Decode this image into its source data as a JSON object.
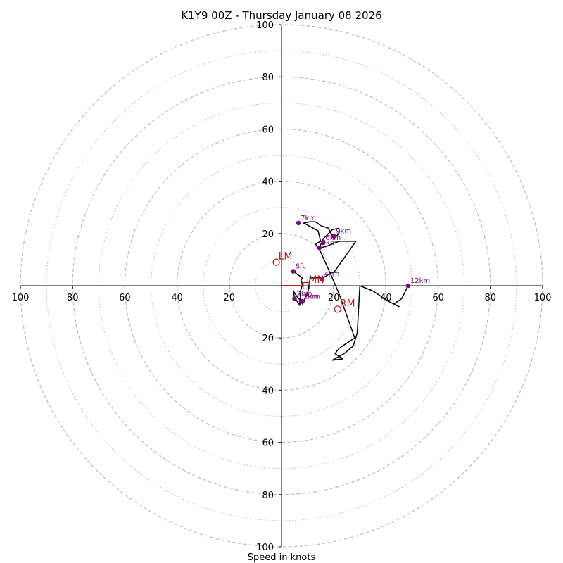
{
  "chart_data": {
    "type": "hodograph",
    "title": "K1Y9 00Z - Thursday January 08 2026",
    "xlabel": "Speed in knots",
    "units": "knots",
    "max_speed": 100,
    "major_rings": [
      20,
      40,
      60,
      80,
      100
    ],
    "minor_rings": [
      10,
      30,
      50,
      70,
      90
    ],
    "x_ticks": [
      {
        "value": -100,
        "label": "100"
      },
      {
        "value": -80,
        "label": "80"
      },
      {
        "value": -60,
        "label": "60"
      },
      {
        "value": -40,
        "label": "40"
      },
      {
        "value": -20,
        "label": "20"
      },
      {
        "value": 20,
        "label": "20"
      },
      {
        "value": 40,
        "label": "40"
      },
      {
        "value": 60,
        "label": "60"
      },
      {
        "value": 80,
        "label": "80"
      },
      {
        "value": 100,
        "label": "100"
      }
    ],
    "y_ticks": [
      {
        "value": 100,
        "label": "100"
      },
      {
        "value": 80,
        "label": "80"
      },
      {
        "value": 60,
        "label": "60"
      },
      {
        "value": 40,
        "label": "40"
      },
      {
        "value": 20,
        "label": "20"
      },
      {
        "value": -20,
        "label": "20"
      },
      {
        "value": -40,
        "label": "40"
      },
      {
        "value": -60,
        "label": "60"
      },
      {
        "value": -80,
        "label": "80"
      },
      {
        "value": -100,
        "label": "100"
      }
    ],
    "trace": [
      [
        4.5,
        5.5
      ],
      [
        8,
        3
      ],
      [
        7.5,
        2
      ],
      [
        8,
        0.5
      ],
      [
        7,
        -3
      ],
      [
        7.5,
        -5.5
      ],
      [
        6.5,
        -5
      ],
      [
        4.5,
        -2
      ],
      [
        5,
        -4.5
      ],
      [
        7,
        -7.5
      ],
      [
        7,
        -5
      ],
      [
        8,
        -7
      ],
      [
        10,
        -3
      ],
      [
        11,
        3
      ],
      [
        16,
        3
      ],
      [
        19,
        5
      ],
      [
        20,
        5
      ],
      [
        28.5,
        17
      ],
      [
        22,
        17
      ],
      [
        17,
        15
      ],
      [
        14.5,
        14.5
      ],
      [
        16,
        18
      ],
      [
        19.5,
        21.5
      ],
      [
        22,
        22
      ],
      [
        22,
        20
      ],
      [
        20,
        18
      ],
      [
        18,
        22
      ],
      [
        15,
        23
      ],
      [
        13,
        24.5
      ],
      [
        11,
        24.5
      ],
      [
        8.5,
        24
      ],
      [
        14,
        21
      ],
      [
        15,
        17
      ],
      [
        13,
        16
      ],
      [
        14.5,
        14
      ],
      [
        19,
        4
      ],
      [
        22,
        -3
      ],
      [
        27,
        -17
      ],
      [
        28,
        -20
      ],
      [
        22,
        -24
      ],
      [
        20.5,
        -26
      ],
      [
        23.5,
        -28
      ],
      [
        19.5,
        -28.5
      ],
      [
        24,
        -26
      ],
      [
        27.5,
        -23
      ],
      [
        29,
        -18
      ],
      [
        30,
        0
      ],
      [
        35,
        -2
      ],
      [
        41,
        -6
      ],
      [
        45,
        -8
      ],
      [
        43,
        -7
      ],
      [
        46,
        -5
      ],
      [
        48.5,
        0
      ]
    ],
    "levels": [
      {
        "label": "Sfc",
        "u": 4.5,
        "v": 5.5
      },
      {
        "label": "1km",
        "u": 7.5,
        "v": -6
      },
      {
        "label": "2km",
        "u": 5,
        "v": -5
      },
      {
        "label": "3km",
        "u": 8,
        "v": -6
      },
      {
        "label": "4km",
        "u": 15.5,
        "v": 2.5
      },
      {
        "label": "5km",
        "u": 14.5,
        "v": 14.5
      },
      {
        "label": "6km",
        "u": 16,
        "v": 16.5
      },
      {
        "label": "7km",
        "u": 6.5,
        "v": 24
      },
      {
        "label": "9km",
        "u": 20,
        "v": 19
      },
      {
        "label": "12km",
        "u": 48.5,
        "v": 0
      }
    ],
    "storm_motions": [
      {
        "label": "LM",
        "u": -2,
        "v": 9,
        "marker": "open-circle"
      },
      {
        "label": "RM",
        "u": 21.5,
        "v": -9,
        "marker": "open-circle"
      },
      {
        "label": "MN",
        "u": 9.5,
        "v": 0,
        "marker": "open-square"
      }
    ],
    "mean_wind_vector": {
      "u_from": 0,
      "v_from": 0,
      "u_to": 8,
      "v_to": 0
    },
    "colors": {
      "trace": "#000000",
      "levels": "#7a0a7a",
      "storm_motion": "#c41a1a",
      "rings": "#bdbdbd",
      "axes": "#000000"
    }
  }
}
